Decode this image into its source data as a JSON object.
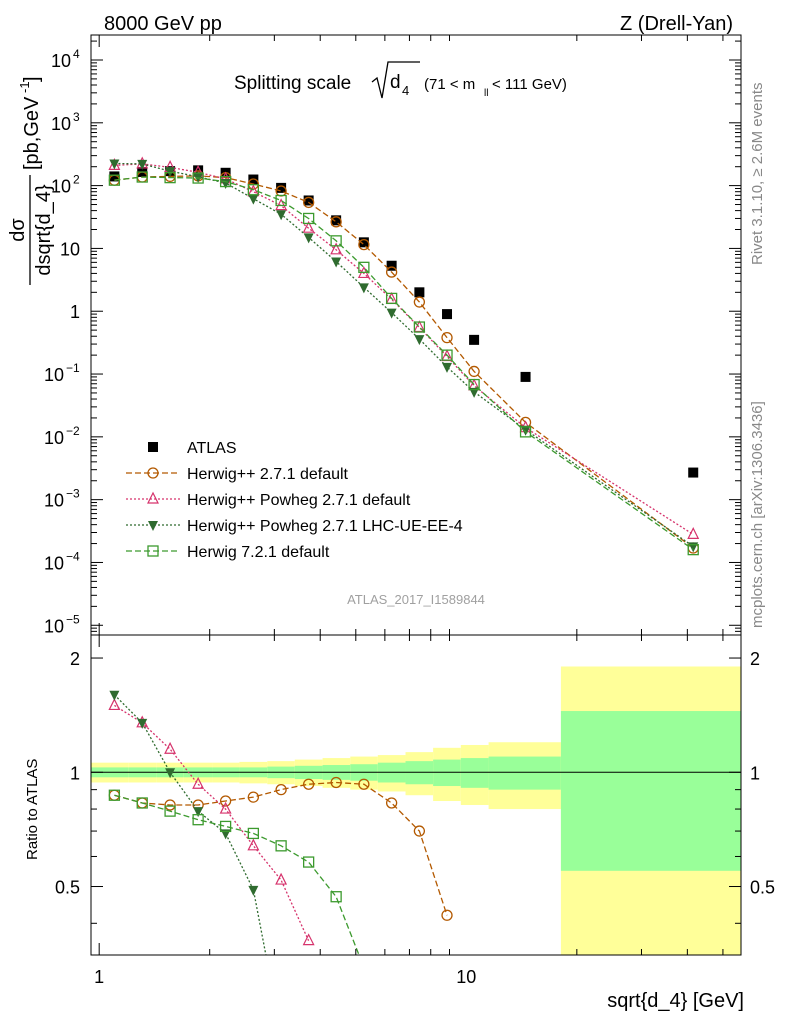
{
  "header": {
    "left": "8000 GeV pp",
    "right": "Z (Drell-Yan)"
  },
  "side_labels": {
    "rivet": "Rivet 3.1.10, ≥ 2.6M events",
    "mcplots": "mcplots.cern.ch [arXiv:1306.3436]"
  },
  "chart_data": [
    {
      "type": "scatter",
      "panel": "main",
      "title_main": "Splitting scale",
      "title_sqrt": "d",
      "title_sub": "4",
      "title_range": "(71 < m",
      "title_range_sub": "ll",
      "title_range_end": " < 111 GeV)",
      "ylabel": "dσ/dsqrt{d_4} [pb,GeV⁻¹]",
      "ylabel_num": "dσ",
      "ylabel_den": "dsqrt{d_4}",
      "ylabel_units": "[pb,GeV",
      "ylabel_units_sup": "-1",
      "ylabel_units_end": "]",
      "analysis_id": "ATLAS_2017_I1589844",
      "x_scale": "log",
      "y_scale": "log",
      "xlim": [
        0.95,
        56
      ],
      "ylim": [
        7e-06,
        25000
      ],
      "y_ticks": [
        {
          "v": 10000,
          "base": "10",
          "exp": "4"
        },
        {
          "v": 1000,
          "base": "10",
          "exp": "3"
        },
        {
          "v": 100,
          "base": "10",
          "exp": "2"
        },
        {
          "v": 10,
          "base": "10",
          "exp": ""
        },
        {
          "v": 1,
          "base": "1",
          "exp": ""
        },
        {
          "v": 0.1,
          "base": "10",
          "exp": "−1"
        },
        {
          "v": 0.01,
          "base": "10",
          "exp": "−2"
        },
        {
          "v": 0.001,
          "base": "10",
          "exp": "−3"
        },
        {
          "v": 0.0001,
          "base": "10",
          "exp": "−4"
        },
        {
          "v": 1e-05,
          "base": "10",
          "exp": "−5"
        }
      ],
      "legend_position": "lower-left",
      "series": [
        {
          "name": "ATLAS",
          "marker": "square-filled",
          "color": "#000000",
          "x": [
            1.1,
            1.31,
            1.56,
            1.86,
            2.21,
            2.63,
            3.13,
            3.72,
            4.42,
            5.26,
            6.26,
            7.45,
            8.86,
            10.5,
            14.5,
            41.5
          ],
          "y": [
            140,
            165,
            170,
            175,
            160,
            125,
            92,
            58,
            28,
            12.5,
            5.3,
            2.0,
            0.9,
            0.35,
            0.09,
            0.0027
          ]
        },
        {
          "name": "Herwig++ 2.7.1 default",
          "marker": "circle-open",
          "line": "dashed",
          "color": "#b35900",
          "x": [
            1.1,
            1.31,
            1.56,
            1.86,
            2.21,
            2.63,
            3.13,
            3.72,
            4.42,
            5.26,
            6.26,
            7.45,
            8.86,
            10.5,
            14.5,
            41.5
          ],
          "y": [
            122,
            137,
            140,
            143,
            134,
            106,
            82,
            54,
            26.5,
            11.5,
            4.2,
            1.4,
            0.38,
            0.11,
            0.017,
            0.00017
          ]
        },
        {
          "name": "Herwig++ Powheg 2.7.1 default",
          "marker": "triangle-up-open",
          "line": "dotted",
          "color": "#d6336c",
          "x": [
            1.1,
            1.31,
            1.56,
            1.86,
            2.21,
            2.63,
            3.13,
            3.72,
            4.42,
            5.26,
            6.26,
            7.45,
            8.86,
            10.5,
            14.5,
            41.5
          ],
          "y": [
            210,
            222,
            195,
            163,
            128,
            80,
            48,
            21,
            9.5,
            4.0,
            1.55,
            0.55,
            0.19,
            0.065,
            0.014,
            0.00028
          ]
        },
        {
          "name": "Herwig++ Powheg 2.7.1 LHC-UE-EE-4",
          "marker": "triangle-down-filled",
          "line": "dotted",
          "color": "#2f6b2f",
          "x": [
            1.1,
            1.31,
            1.56,
            1.86,
            2.21,
            2.63,
            3.13,
            3.72,
            4.42,
            5.26,
            6.26,
            7.45,
            8.86,
            10.5,
            14.5,
            41.5
          ],
          "y": [
            225,
            222,
            170,
            138,
            110,
            62,
            35,
            15,
            6.2,
            2.4,
            0.95,
            0.36,
            0.13,
            0.052,
            0.013,
            0.00018
          ]
        },
        {
          "name": "Herwig 7.2.1 default",
          "marker": "square-open",
          "line": "dashed",
          "color": "#3c9a2e",
          "x": [
            1.1,
            1.31,
            1.56,
            1.86,
            2.21,
            2.63,
            3.13,
            3.72,
            4.42,
            5.26,
            6.26,
            7.45,
            8.86,
            10.5,
            14.5,
            41.5
          ],
          "y": [
            122,
            137,
            134,
            132,
            116,
            86,
            58,
            30,
            13.2,
            5.0,
            1.6,
            0.56,
            0.2,
            0.068,
            0.012,
            0.00016
          ]
        }
      ]
    },
    {
      "type": "line",
      "panel": "ratio",
      "ylabel": "Ratio to ATLAS",
      "xlabel": "sqrt{d_4} [GeV]",
      "x_scale": "log",
      "xlim": [
        0.95,
        56
      ],
      "ylim": [
        0.33,
        2.3
      ],
      "y_ticks": [
        "0.5",
        "1",
        "2"
      ],
      "x_ticks": [
        "1",
        "10"
      ],
      "bands": {
        "edges": [
          0.95,
          1.2,
          1.43,
          1.7,
          2.03,
          2.41,
          2.87,
          3.41,
          4.06,
          4.83,
          5.74,
          6.83,
          8.12,
          9.66,
          11.5,
          18.1,
          56
        ],
        "inner_halfwidth": [
          0.03,
          0.03,
          0.03,
          0.03,
          0.03,
          0.03,
          0.035,
          0.04,
          0.045,
          0.05,
          0.06,
          0.07,
          0.08,
          0.09,
          0.1,
          0.45
        ],
        "outer_halfwidth": [
          0.06,
          0.06,
          0.06,
          0.06,
          0.06,
          0.065,
          0.07,
          0.08,
          0.09,
          0.1,
          0.11,
          0.13,
          0.16,
          0.18,
          0.2,
          0.9
        ],
        "inner_color": "#99ff99",
        "outer_color": "#ffff99"
      },
      "series": [
        {
          "name": "Herwig++ 2.7.1 default",
          "color": "#b35900",
          "marker": "circle-open",
          "line": "dashed",
          "x": [
            1.1,
            1.31,
            1.56,
            1.86,
            2.21,
            2.63,
            3.13,
            3.72,
            4.42,
            5.26,
            6.26,
            7.45,
            8.86
          ],
          "y": [
            0.87,
            0.83,
            0.82,
            0.82,
            0.84,
            0.86,
            0.9,
            0.93,
            0.94,
            0.93,
            0.83,
            0.7,
            0.42
          ]
        },
        {
          "name": "Herwig++ Powheg 2.7.1 default",
          "color": "#d6336c",
          "marker": "triangle-up-open",
          "line": "dotted",
          "x": [
            1.1,
            1.31,
            1.56,
            1.86,
            2.21,
            2.63,
            3.13,
            3.72
          ],
          "y": [
            1.5,
            1.35,
            1.15,
            0.93,
            0.8,
            0.64,
            0.52,
            0.36
          ]
        },
        {
          "name": "Herwig++ Powheg 2.7.1 LHC-UE-EE-4",
          "color": "#2f6b2f",
          "marker": "triangle-down-filled",
          "line": "dotted",
          "x": [
            1.1,
            1.31,
            1.56,
            1.86,
            2.21,
            2.63,
            2.9
          ],
          "y": [
            1.6,
            1.35,
            1.0,
            0.79,
            0.69,
            0.49,
            0.3
          ]
        },
        {
          "name": "Herwig 7.2.1 default",
          "color": "#3c9a2e",
          "marker": "square-open",
          "line": "dashed",
          "x": [
            1.1,
            1.31,
            1.56,
            1.86,
            2.21,
            2.63,
            3.13,
            3.72,
            4.42,
            5.1
          ],
          "y": [
            0.87,
            0.83,
            0.79,
            0.75,
            0.72,
            0.69,
            0.64,
            0.58,
            0.47,
            0.33
          ]
        }
      ]
    }
  ]
}
